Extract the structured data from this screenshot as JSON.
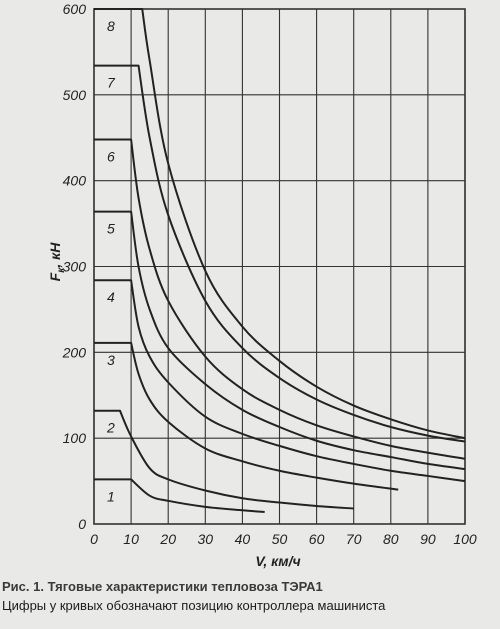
{
  "chart_data": {
    "type": "line",
    "xlabel": "V, км/ч",
    "ylabel": "Fк, кН",
    "xlim": [
      0,
      100
    ],
    "ylim": [
      0,
      600
    ],
    "x_ticks": [
      0,
      10,
      20,
      30,
      40,
      50,
      60,
      70,
      80,
      90,
      100
    ],
    "y_ticks": [
      0,
      100,
      200,
      300,
      400,
      500,
      600
    ],
    "grid": true,
    "legend": "none",
    "series": [
      {
        "name": "1",
        "points": [
          [
            0,
            52
          ],
          [
            10,
            52
          ],
          [
            15,
            33
          ],
          [
            20,
            27
          ],
          [
            30,
            20
          ],
          [
            40,
            16
          ],
          [
            46,
            14
          ]
        ]
      },
      {
        "name": "2",
        "points": [
          [
            0,
            132
          ],
          [
            7,
            132
          ],
          [
            10,
            102
          ],
          [
            15,
            65
          ],
          [
            20,
            52
          ],
          [
            30,
            39
          ],
          [
            40,
            30
          ],
          [
            50,
            25
          ],
          [
            60,
            21
          ],
          [
            70,
            18
          ]
        ]
      },
      {
        "name": "3",
        "points": [
          [
            0,
            211
          ],
          [
            10,
            211
          ],
          [
            12,
            175
          ],
          [
            15,
            145
          ],
          [
            20,
            119
          ],
          [
            30,
            88
          ],
          [
            40,
            73
          ],
          [
            50,
            62
          ],
          [
            60,
            54
          ],
          [
            70,
            47
          ],
          [
            82,
            40
          ]
        ]
      },
      {
        "name": "4",
        "points": [
          [
            0,
            284
          ],
          [
            10,
            284
          ],
          [
            12,
            230
          ],
          [
            15,
            195
          ],
          [
            20,
            165
          ],
          [
            30,
            125
          ],
          [
            40,
            105
          ],
          [
            50,
            91
          ],
          [
            60,
            79
          ],
          [
            70,
            70
          ],
          [
            80,
            62
          ],
          [
            90,
            56
          ],
          [
            100,
            50
          ]
        ]
      },
      {
        "name": "5",
        "points": [
          [
            0,
            364
          ],
          [
            10,
            364
          ],
          [
            12,
            300
          ],
          [
            15,
            250
          ],
          [
            20,
            205
          ],
          [
            30,
            163
          ],
          [
            40,
            133
          ],
          [
            50,
            113
          ],
          [
            60,
            97
          ],
          [
            70,
            86
          ],
          [
            80,
            78
          ],
          [
            90,
            70
          ],
          [
            100,
            64
          ]
        ]
      },
      {
        "name": "6",
        "points": [
          [
            0,
            448
          ],
          [
            10,
            448
          ],
          [
            12,
            380
          ],
          [
            15,
            320
          ],
          [
            20,
            260
          ],
          [
            30,
            195
          ],
          [
            40,
            157
          ],
          [
            50,
            133
          ],
          [
            60,
            115
          ],
          [
            70,
            102
          ],
          [
            80,
            91
          ],
          [
            90,
            83
          ],
          [
            100,
            76
          ]
        ]
      },
      {
        "name": "7",
        "points": [
          [
            0,
            534
          ],
          [
            12,
            534
          ],
          [
            15,
            450
          ],
          [
            20,
            360
          ],
          [
            30,
            260
          ],
          [
            40,
            205
          ],
          [
            50,
            170
          ],
          [
            60,
            145
          ],
          [
            70,
            127
          ],
          [
            80,
            113
          ],
          [
            90,
            103
          ],
          [
            100,
            96
          ]
        ]
      },
      {
        "name": "8",
        "points": [
          [
            0,
            600
          ],
          [
            13,
            600
          ],
          [
            15,
            540
          ],
          [
            20,
            420
          ],
          [
            30,
            295
          ],
          [
            40,
            230
          ],
          [
            50,
            190
          ],
          [
            60,
            160
          ],
          [
            70,
            138
          ],
          [
            80,
            122
          ],
          [
            90,
            109
          ],
          [
            100,
            100
          ]
        ]
      }
    ]
  },
  "caption": {
    "title": "Рис. 1. Тяговые характеристики тепловоза ТЭРА1",
    "note": "Цифры у кривых обозначают позицию контроллера машиниста"
  },
  "colors": {
    "line": "#222222",
    "grid": "#333333",
    "background": "#e9e9e7"
  }
}
